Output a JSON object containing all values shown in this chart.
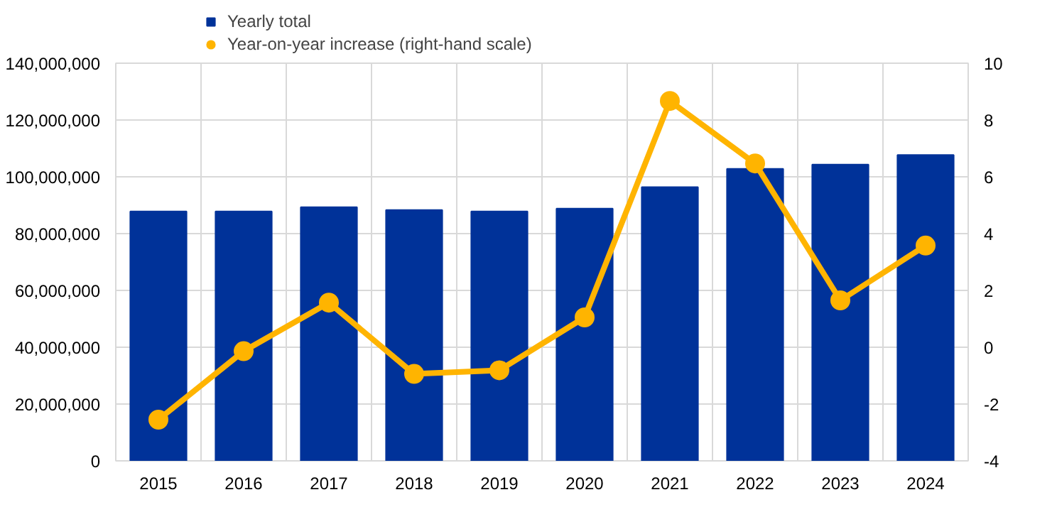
{
  "chart_data": {
    "type": "bar",
    "categories": [
      "2015",
      "2016",
      "2017",
      "2018",
      "2019",
      "2020",
      "2021",
      "2022",
      "2023",
      "2024"
    ],
    "series": [
      {
        "name": "Yearly total",
        "color": "#003299",
        "values": [
          87800000,
          87800000,
          89300000,
          88300000,
          87800000,
          88800000,
          96400000,
          102800000,
          104300000,
          107700000
        ]
      },
      {
        "name": "Year-on-year increase (right-hand scale)",
        "type": "line",
        "axis": "y2",
        "color": "#ffb400",
        "marker": "circle",
        "values": [
          -2.55,
          -0.14,
          1.57,
          -0.94,
          -0.81,
          1.05,
          8.67,
          6.47,
          1.65,
          3.58
        ]
      }
    ],
    "ylim": [
      0,
      140000000
    ],
    "yticks": [
      {
        "value": 0,
        "label": "0"
      },
      {
        "value": 20000000,
        "label": "20,000,000"
      },
      {
        "value": 40000000,
        "label": "40,000,000"
      },
      {
        "value": 60000000,
        "label": "60,000,000"
      },
      {
        "value": 80000000,
        "label": "80,000,000"
      },
      {
        "value": 100000000,
        "label": "100,000,000"
      },
      {
        "value": 120000000,
        "label": "120,000,000"
      },
      {
        "value": 140000000,
        "label": "140,000,000"
      }
    ],
    "y2lim": [
      -4,
      10
    ],
    "y2ticks": [
      -4,
      -2,
      0,
      2,
      4,
      6,
      8,
      10
    ],
    "grid": true,
    "legend": "top left"
  }
}
